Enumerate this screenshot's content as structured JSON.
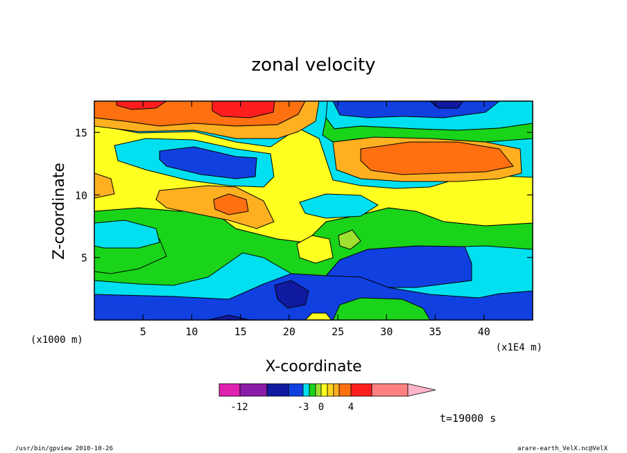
{
  "chart_data": {
    "type": "heatmap",
    "title": "zonal velocity",
    "xlabel": "X-coordinate",
    "ylabel": "Z-coordinate",
    "x_unit": "(x1E4 m)",
    "y_unit": "(x1000 m)",
    "xlim": [
      0,
      45
    ],
    "ylim": [
      0,
      17.5
    ],
    "x_ticks": [
      "5",
      "10",
      "15",
      "20",
      "25",
      "30",
      "35",
      "40"
    ],
    "y_ticks": [
      "5",
      "10",
      "15"
    ],
    "colorbar": {
      "tick_labels": [
        "-12",
        "-3",
        "0",
        "4"
      ],
      "colors": [
        "#e020b0",
        "#8a1aa8",
        "#101aa0",
        "#1040e0",
        "#00e0f0",
        "#19d419",
        "#a0e030",
        "#ffff20",
        "#ffd21e",
        "#ffb020",
        "#ff7010",
        "#ff1e1e",
        "#ff8080",
        "#ffb4c8"
      ]
    },
    "time_label": "t=19000 s",
    "legend": "colorbar-bottom",
    "grid": false
  },
  "footer": {
    "left": "/usr/bin/gpview   2010-10-26",
    "right": "arare-earth_VelX.nc@VelX"
  }
}
